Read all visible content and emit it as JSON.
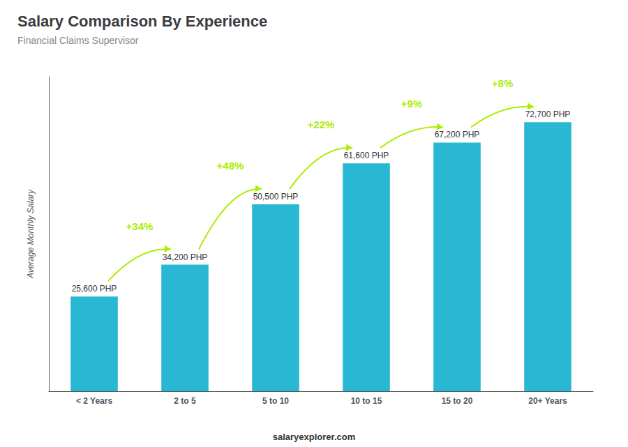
{
  "chart_data": {
    "type": "bar",
    "title": "Salary Comparison By Experience",
    "subtitle": "Financial Claims Supervisor",
    "ylabel": "Average Monthly Salary",
    "footer": "salaryexplorer.com",
    "categories": [
      "< 2 Years",
      "2 to 5",
      "5 to 10",
      "10 to 15",
      "15 to 20",
      "20+ Years"
    ],
    "values": [
      25600,
      34200,
      50500,
      61600,
      67200,
      72700
    ],
    "value_labels": [
      "25,600 PHP",
      "34,200 PHP",
      "50,500 PHP",
      "61,600 PHP",
      "67,200 PHP",
      "72,700 PHP"
    ],
    "data_labels": true,
    "annotations": [
      {
        "text": "+34%",
        "color": "#aaee00"
      },
      {
        "text": "+48%",
        "color": "#aaee00"
      },
      {
        "text": "+22%",
        "color": "#aaee00"
      },
      {
        "text": "+9%",
        "color": "#aaee00"
      },
      {
        "text": "+8%",
        "color": "#aaee00"
      }
    ],
    "color": "#29b8d4",
    "ylim": [
      0,
      85000
    ],
    "tick_labels": "x",
    "grid": false
  }
}
